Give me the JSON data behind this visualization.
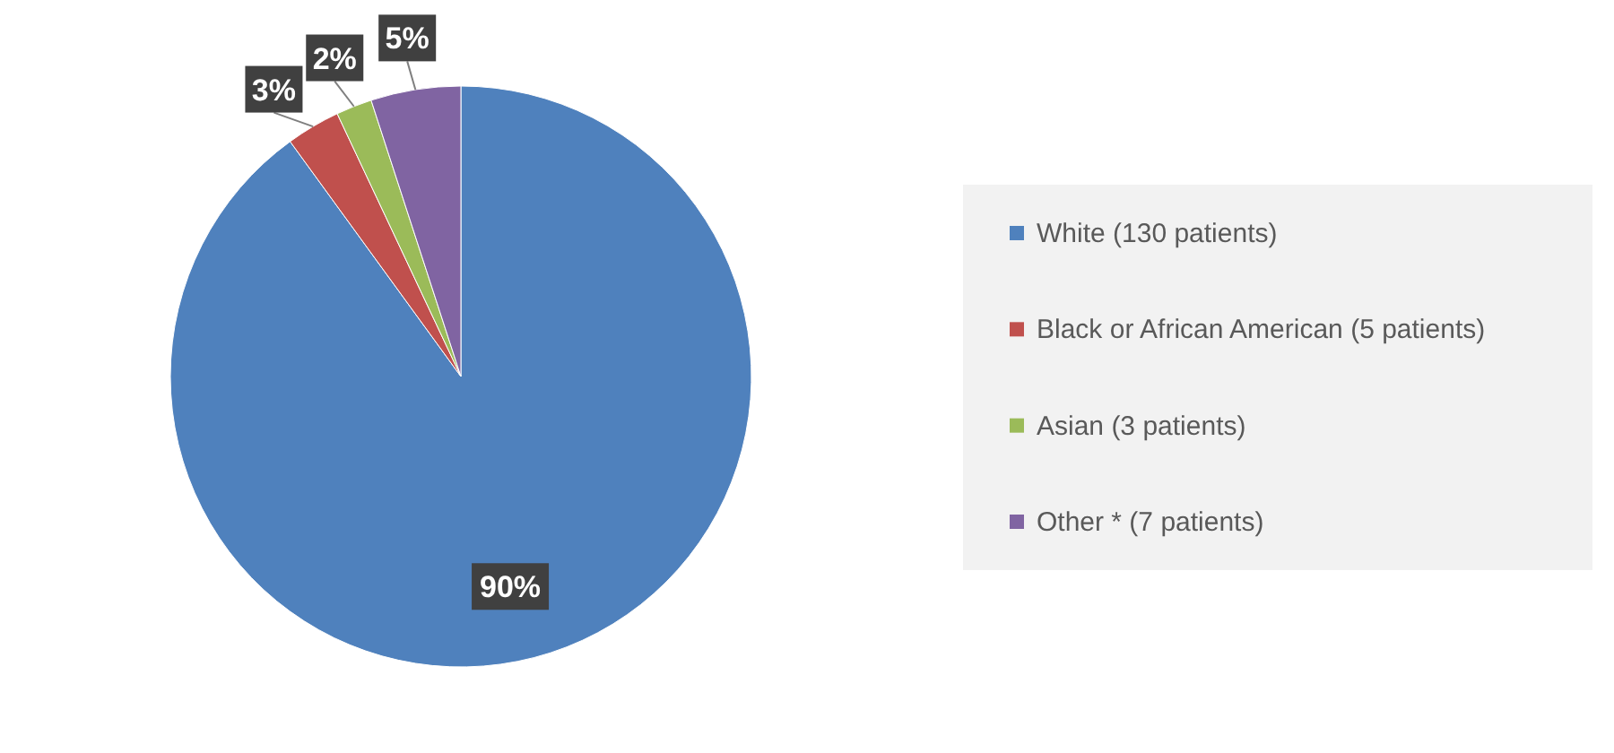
{
  "chart_data": {
    "type": "pie",
    "categories": [
      "White (130 patients)",
      "Black or African American (5 patients)",
      "Asian (3 patients)",
      "Other * (7 patients)"
    ],
    "values": [
      90,
      3,
      2,
      5
    ],
    "value_labels": [
      "90%",
      "3%",
      "2%",
      "5%"
    ],
    "colors": [
      "#4f81bd",
      "#c0504d",
      "#9bbb59",
      "#8064a2"
    ],
    "legend": "right"
  }
}
